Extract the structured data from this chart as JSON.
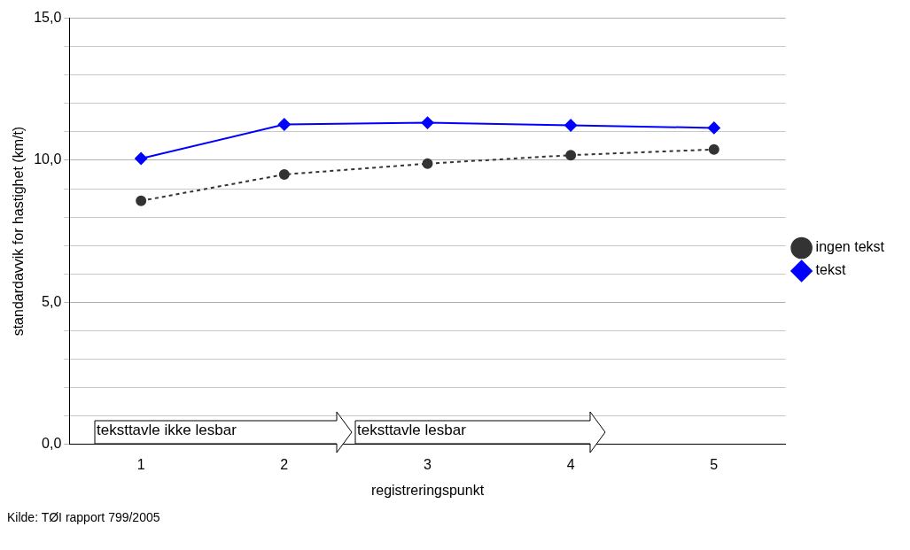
{
  "chart_data": {
    "type": "line",
    "xlabel": "registreringspunkt",
    "ylabel": "standardavvik for hastighet (km/t)",
    "categories": [
      "1",
      "2",
      "3",
      "4",
      "5"
    ],
    "series": [
      {
        "name": "ingen tekst",
        "color": "#333333",
        "values": [
          8.57,
          9.5,
          9.88,
          10.18,
          10.38
        ],
        "marker": "circle",
        "line_style": "dashed"
      },
      {
        "name": "tekst",
        "color": "#0000ff",
        "values": [
          10.06,
          11.26,
          11.32,
          11.23,
          11.14
        ],
        "marker": "diamond",
        "line_style": "solid"
      }
    ],
    "ylim": [
      0,
      15
    ],
    "yticks": [
      {
        "value": 0,
        "label": "0,0"
      },
      {
        "value": 1,
        "label": null
      },
      {
        "value": 2,
        "label": null
      },
      {
        "value": 3,
        "label": null
      },
      {
        "value": 4,
        "label": null
      },
      {
        "value": 5,
        "label": "5,0"
      },
      {
        "value": 6,
        "label": null
      },
      {
        "value": 7,
        "label": null
      },
      {
        "value": 8,
        "label": null
      },
      {
        "value": 9,
        "label": null
      },
      {
        "value": 10,
        "label": "10,0"
      },
      {
        "value": 11,
        "label": null
      },
      {
        "value": 12,
        "label": null
      },
      {
        "value": 13,
        "label": null
      },
      {
        "value": 14,
        "label": null
      },
      {
        "value": 15,
        "label": "15,0"
      }
    ],
    "grid": "y",
    "legend": "right",
    "annotations": [
      "teksttavle ikke lesbar",
      "teksttavle lesbar",
      "Kilde: TØI rapport 799/2005"
    ]
  }
}
